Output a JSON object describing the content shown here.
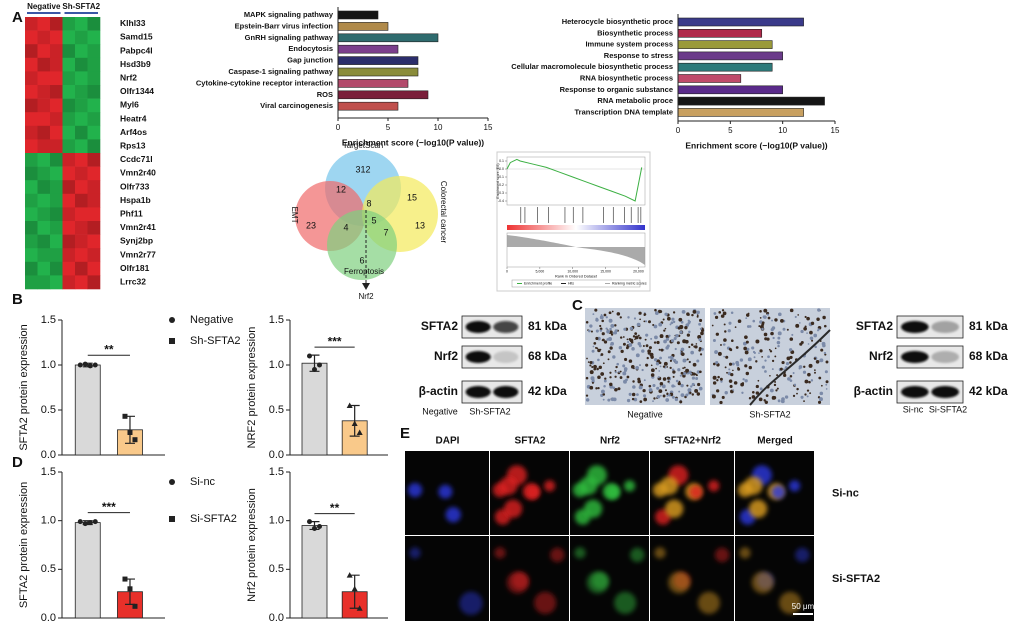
{
  "panels": [
    "A",
    "B",
    "C",
    "D",
    "E"
  ],
  "heatmap": {
    "groups": [
      "Negative",
      "Sh-SFTA2"
    ],
    "low_color": "#22b24c",
    "high_color": "#e0262b",
    "genes": [
      "Klhl33",
      "Samd15",
      "Pabpc4l",
      "Hsd3b9",
      "Nrf2",
      "Olfr1344",
      "Myl6",
      "Heatr4",
      "Arf4os",
      "Rps13",
      "Ccdc71l",
      "Vmn2r40",
      "Olfr733",
      "Hspa1b",
      "Phf11",
      "Vmn2r41",
      "Synj2bp",
      "Vmn2r77",
      "Olfr181",
      "Lrrc32"
    ],
    "values": [
      [
        0.9,
        1,
        0.8,
        -0.9,
        -1,
        -0.8
      ],
      [
        1,
        0.9,
        1,
        -1,
        -0.9,
        -1
      ],
      [
        0.8,
        1,
        0.9,
        -0.8,
        -1,
        -0.9
      ],
      [
        1,
        0.8,
        0.9,
        -1,
        -0.8,
        -0.9
      ],
      [
        0.9,
        1,
        1,
        -0.9,
        -1,
        -0.9
      ],
      [
        1,
        0.9,
        0.8,
        -1,
        -0.9,
        -0.8
      ],
      [
        0.8,
        0.9,
        1,
        -0.8,
        -0.9,
        -1
      ],
      [
        1,
        1,
        0.9,
        -0.9,
        -1,
        -0.9
      ],
      [
        0.9,
        0.8,
        1,
        -1,
        -0.8,
        -1
      ],
      [
        1,
        0.9,
        0.9,
        -0.9,
        -1,
        -0.8
      ],
      [
        -0.9,
        -1,
        -0.8,
        0.9,
        1,
        0.8
      ],
      [
        -0.8,
        -0.9,
        -1,
        1,
        0.9,
        1
      ],
      [
        -1,
        -0.8,
        -0.9,
        0.8,
        1,
        0.9
      ],
      [
        -0.9,
        -1,
        -0.9,
        1,
        0.8,
        0.9
      ],
      [
        -1,
        -0.9,
        -0.8,
        0.9,
        1,
        1
      ],
      [
        -0.8,
        -1,
        -0.9,
        1,
        0.9,
        0.8
      ],
      [
        -0.9,
        -0.8,
        -1,
        0.8,
        0.9,
        1
      ],
      [
        -1,
        -0.9,
        -0.9,
        0.9,
        1,
        0.9
      ],
      [
        -0.8,
        -1,
        -0.8,
        1,
        0.8,
        1
      ],
      [
        -0.9,
        -0.9,
        -1,
        0.9,
        1,
        0.8
      ]
    ]
  },
  "chart_data": [
    {
      "type": "hbar",
      "categories": [
        "MAPK signaling pathway",
        "Epstein-Barr virus infection",
        "GnRH signaling pathway",
        "Endocytosis",
        "Gap junction",
        "Caspase-1 signaling pathway",
        "Cytokine-cytokine receptor interaction",
        "ROS",
        "Viral carcinogenesis"
      ],
      "values": [
        4,
        5,
        10,
        6,
        8,
        8,
        7,
        9,
        6
      ],
      "colors": [
        "#151515",
        "#b08a4a",
        "#2f6b6e",
        "#7b3f8c",
        "#2b2d6b",
        "#8a8c3a",
        "#b24a6b",
        "#7a1f3a",
        "#c0504d"
      ],
      "xlim": [
        0,
        15
      ],
      "xticks": [
        0,
        5,
        10,
        15
      ],
      "xlabel": "Enrichment score (−log10(P value))"
    },
    {
      "type": "hbar",
      "categories": [
        "Heterocycle biosynthetic proce",
        "Biosynthetic process",
        "Immune system process",
        "Response to stress",
        "Cellular macromolecule biosynthetic process",
        "RNA biosynthetic process",
        "Response to organic substance",
        "RNA metabolic proce",
        "Transcription DNA template"
      ],
      "values": [
        12,
        8,
        9,
        10,
        9,
        6,
        10,
        14,
        12
      ],
      "colors": [
        "#3a3a8a",
        "#b02a4a",
        "#9a9a3a",
        "#6a3a8a",
        "#2e7a7a",
        "#c04a6a",
        "#5a2a8a",
        "#151515",
        "#c8a060"
      ],
      "xlim": [
        0,
        15
      ],
      "xticks": [
        0,
        5,
        10,
        15
      ],
      "xlabel": "Enrichment score (−log10(P value))"
    },
    {
      "type": "bar",
      "ylabel": "SFTA2 protein expression",
      "significance": "**",
      "ylim": [
        0,
        1.5
      ],
      "yticks": [
        {
          "value": 0,
          "label": "0.0"
        },
        0.5,
        {
          "value": 1,
          "label": "1.0"
        },
        1.5
      ],
      "series": [
        {
          "name": "Negative",
          "color": "#d9d9d9",
          "marker": "circle",
          "values": [
            1.0
          ],
          "errors": [
            0.02
          ],
          "points": [
            1.0,
            1.01,
            0.99,
            1.0
          ]
        },
        {
          "name": "Sh-SFTA2",
          "color": "#f9c98a",
          "marker": "square",
          "values": [
            0.28
          ],
          "errors": [
            0.15
          ],
          "points": [
            0.43,
            0.25,
            0.17
          ]
        }
      ]
    },
    {
      "type": "bar",
      "ylabel": "NRF2 protein expression",
      "significance": "***",
      "ylim": [
        0,
        1.5
      ],
      "yticks": [
        {
          "value": 0,
          "label": "0.0"
        },
        0.5,
        {
          "value": 1,
          "label": "1.0"
        },
        1.5
      ],
      "series": [
        {
          "color": "#d9d9d9",
          "marker": "circle",
          "values": [
            1.02
          ],
          "errors": [
            0.09
          ],
          "points": [
            1.1,
            0.95,
            1.0
          ]
        },
        {
          "color": "#f9c98a",
          "marker": "triangle",
          "values": [
            0.38
          ],
          "errors": [
            0.17
          ],
          "points": [
            0.55,
            0.35,
            0.25
          ]
        }
      ]
    },
    {
      "type": "bar",
      "ylabel": "SFTA2 protein expression",
      "significance": "***",
      "ylim": [
        0,
        1.5
      ],
      "yticks": [
        {
          "value": 0,
          "label": "0.0"
        },
        0.5,
        {
          "value": 1,
          "label": "1.0"
        },
        1.5
      ],
      "series": [
        {
          "name": "Si-nc",
          "color": "#d9d9d9",
          "marker": "circle",
          "values": [
            0.98
          ],
          "errors": [
            0.02
          ],
          "points": [
            0.99,
            0.97,
            0.98,
            0.99
          ]
        },
        {
          "name": "Si-SFTA2",
          "color": "#e8302a",
          "marker": "square",
          "values": [
            0.27
          ],
          "errors": [
            0.13
          ],
          "points": [
            0.4,
            0.3,
            0.12
          ]
        }
      ]
    },
    {
      "type": "bar",
      "ylabel": "Nrf2 protein expression",
      "significance": "**",
      "ylim": [
        0,
        1.5
      ],
      "yticks": [
        {
          "value": 0,
          "label": "0.0"
        },
        0.5,
        {
          "value": 1,
          "label": "1.0"
        },
        1.5
      ],
      "series": [
        {
          "color": "#d9d9d9",
          "marker": "circle",
          "values": [
            0.95
          ],
          "errors": [
            0.04
          ],
          "points": [
            0.99,
            0.92,
            0.94
          ]
        },
        {
          "color": "#e8302a",
          "marker": "triangle",
          "values": [
            0.27
          ],
          "errors": [
            0.17
          ],
          "points": [
            0.44,
            0.3,
            0.1
          ]
        }
      ]
    },
    {
      "type": "line",
      "ylabel": "Enrichment score (ES)",
      "xlabel": "Rank in Ordered Dataset",
      "color": "#3cb043",
      "x": [
        0,
        500,
        1500,
        2000,
        4000,
        6000,
        8000,
        10000,
        12000,
        14000,
        16000,
        18000,
        19500,
        20500
      ],
      "values": [
        0,
        0.08,
        0.12,
        0.1,
        0.06,
        0.02,
        -0.04,
        -0.1,
        -0.16,
        -0.22,
        -0.28,
        -0.34,
        -0.4,
        0.02
      ],
      "xlim": [
        0,
        21000
      ],
      "xticks": [
        0,
        {
          "value": 5000,
          "label": "5,000"
        },
        {
          "value": 10000,
          "label": "10,000"
        },
        {
          "value": 15000,
          "label": "15,000"
        },
        {
          "value": 20000,
          "label": "20,000"
        }
      ],
      "ylim": [
        -0.45,
        0.15
      ],
      "yticks": [
        0.1,
        {
          "value": 0,
          "label": "0.0"
        },
        -0.1,
        -0.2,
        -0.3,
        -0.4
      ],
      "legend": [
        "Enrichment profile",
        "Hits",
        "Ranking metric scores"
      ]
    }
  ],
  "venn": {
    "sets": [
      "TargetScan",
      "EMT",
      "Colorectal cancer",
      "Ferroptosis"
    ],
    "counts": [
      312,
      23,
      15,
      13,
      12,
      8,
      5,
      4,
      7,
      6
    ],
    "target": "Nrf2"
  },
  "blots": [
    {
      "proteins": [
        "SFTA2",
        "Nrf2",
        "β-actin"
      ],
      "sizes": [
        "81 kDa",
        "68 kDa",
        "42 kDa"
      ],
      "lanes": [
        "Negative",
        "Sh-SFTA2"
      ]
    },
    {
      "proteins": [
        "SFTA2",
        "Nrf2",
        "β-actin"
      ],
      "sizes": [
        "81 kDa",
        "68 kDa",
        "42 kDa"
      ],
      "lanes": [
        "Si-nc",
        "Si-SFTA2"
      ]
    }
  ],
  "ihc": {
    "labels": [
      "Negative",
      "Sh-SFTA2"
    ]
  },
  "immunofluorescence": {
    "channels": [
      "DAPI",
      "SFTA2",
      "Nrf2",
      "SFTA2+Nrf2",
      "Merged"
    ],
    "conditions": [
      "Si-nc",
      "Si-SFTA2"
    ],
    "scale_bar": "50 μm"
  }
}
